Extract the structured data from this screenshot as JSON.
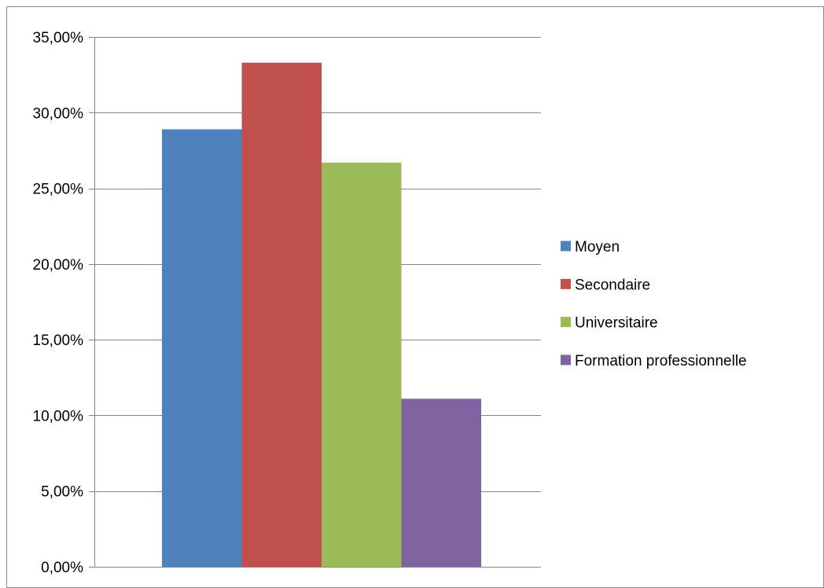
{
  "chart_data": {
    "type": "bar",
    "title": "",
    "xlabel": "",
    "ylabel": "",
    "ylim": [
      0,
      35
    ],
    "y_ticks": [
      0,
      5,
      10,
      15,
      20,
      25,
      30,
      35
    ],
    "y_tick_labels": [
      "0,00%",
      "5,00%",
      "10,00%",
      "15,00%",
      "20,00%",
      "25,00%",
      "30,00%",
      "35,00%"
    ],
    "grid": true,
    "legend_position": "right",
    "series": [
      {
        "name": "Moyen",
        "values": [
          28.9
        ],
        "color": "#4f81bd"
      },
      {
        "name": "Secondaire",
        "values": [
          33.3
        ],
        "color": "#c0504d"
      },
      {
        "name": "Universitaire",
        "values": [
          26.7
        ],
        "color": "#9bbb59"
      },
      {
        "name": "Formation professionnelle",
        "values": [
          11.1
        ],
        "color": "#8064a2"
      }
    ]
  }
}
